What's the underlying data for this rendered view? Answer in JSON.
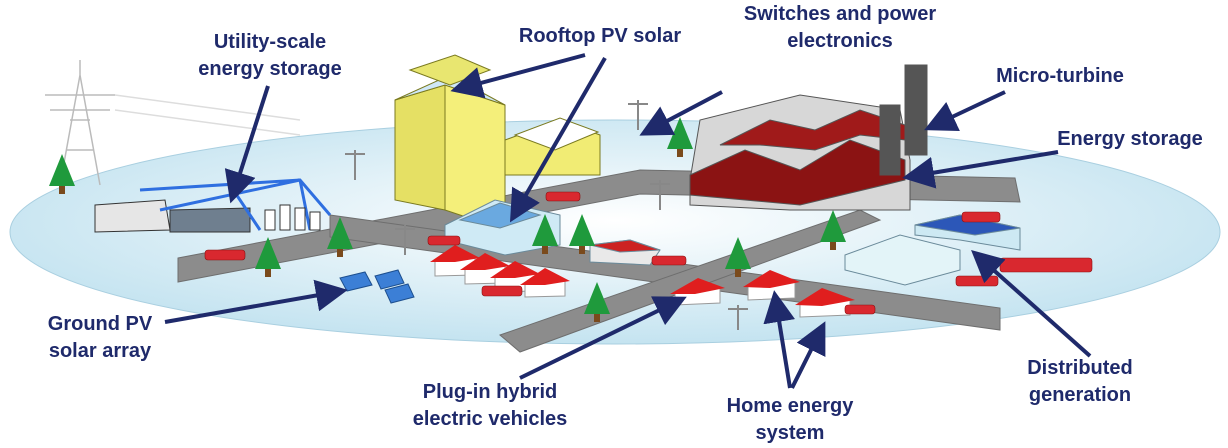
{
  "labels": [
    {
      "lines": [
        "Utility-scale",
        "energy storage"
      ]
    },
    {
      "lines": [
        "Rooftop PV solar"
      ]
    },
    {
      "lines": [
        "Switches and power",
        "electronics"
      ]
    },
    {
      "lines": [
        "Micro-turbine"
      ]
    },
    {
      "lines": [
        "Energy storage"
      ]
    },
    {
      "lines": [
        "Ground PV",
        "solar array"
      ]
    },
    {
      "lines": [
        "Plug-in hybrid",
        "electric vehicles"
      ]
    },
    {
      "lines": [
        "Home energy",
        "system"
      ]
    },
    {
      "lines": [
        "Distributed",
        "generation"
      ]
    }
  ]
}
